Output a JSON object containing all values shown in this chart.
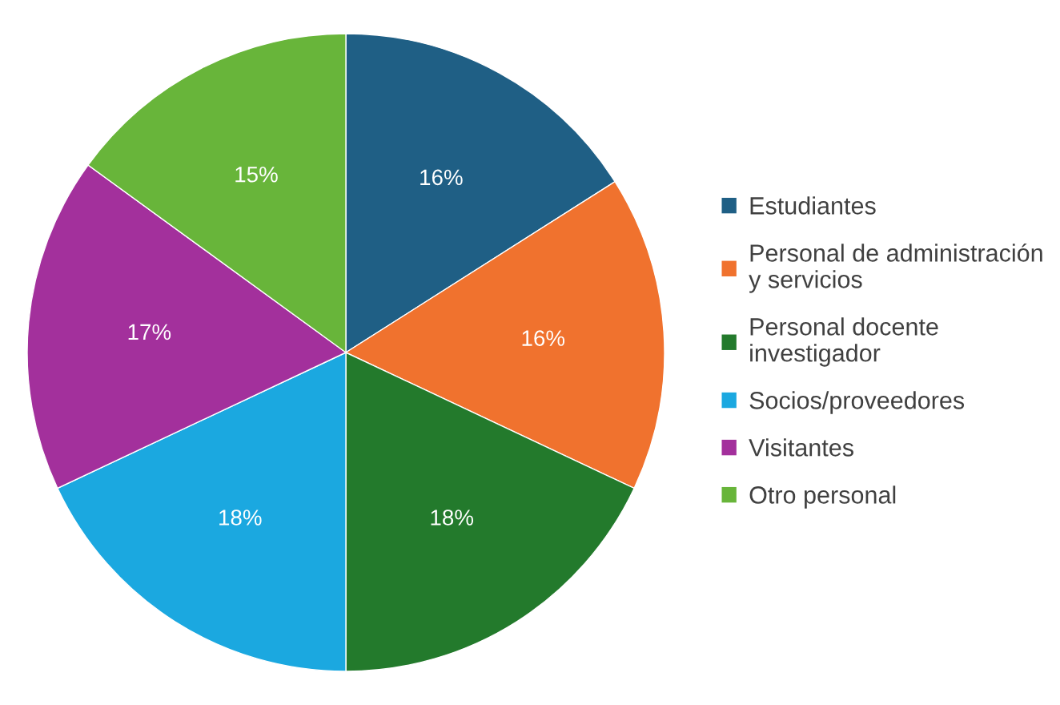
{
  "chart_data": {
    "type": "pie",
    "categories": [
      "Estudiantes",
      "Personal de administración y servicios",
      "Personal docente investigador",
      "Socios/proveedores",
      "Visitantes",
      "Otro personal"
    ],
    "values": [
      16,
      16,
      18,
      18,
      17,
      15
    ],
    "colors": [
      "#1f5f85",
      "#f0722e",
      "#237a2c",
      "#1ba8e0",
      "#a3309c",
      "#68b53a"
    ],
    "value_labels": [
      "16%",
      "16%",
      "18%",
      "18%",
      "17%",
      "15%"
    ],
    "legend": "right"
  }
}
